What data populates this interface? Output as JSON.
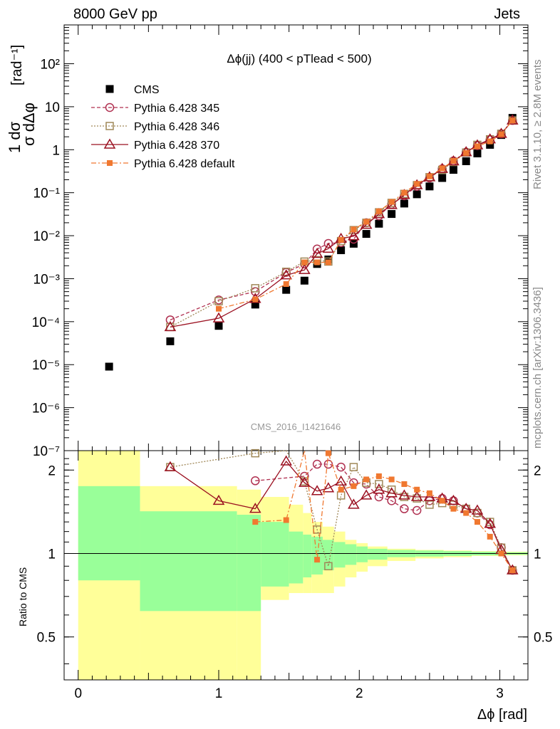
{
  "header": {
    "left": "8000 GeV pp",
    "right": "Jets"
  },
  "side_labels": {
    "top": "Rivet 3.1.10, ≥ 2.8M events",
    "bottom": "mcplots.cern.ch [arXiv:1306.3436]"
  },
  "watermark": "CMS_2016_I1421646",
  "colors": {
    "data": "#000000",
    "p345": "#b03050",
    "p346": "#a08858",
    "p370": "#9b1020",
    "pdef": "#f07830",
    "green_band": "#99ff99",
    "yellow_band": "#ffff99"
  },
  "chart_data": [
    {
      "type": "scatter",
      "title": "Δϕ(jj) (400 < pTlead <  500)",
      "xlabel": "Δϕ [rad]",
      "ylabel": "1 dσ / σ dΔϕ [rad⁻¹]",
      "xlim": [
        -0.1,
        3.2
      ],
      "ylim": [
        1e-07,
        800
      ],
      "log_y": true,
      "legend_position": "top-left",
      "yticks": [
        "10⁻⁷",
        "10⁻⁶",
        "10⁻⁵",
        "10⁻⁴",
        "10⁻³",
        "10⁻²",
        "10⁻¹",
        "1",
        "10",
        "10²"
      ],
      "legend": [
        "CMS",
        "Pythia 6.428 345",
        "Pythia 6.428 346",
        "Pythia 6.428 370",
        "Pythia 6.428 default"
      ],
      "x": [
        0.22,
        0.655,
        1.0,
        1.26,
        1.48,
        1.61,
        1.7,
        1.78,
        1.87,
        1.96,
        2.05,
        2.14,
        2.23,
        2.32,
        2.41,
        2.5,
        2.59,
        2.67,
        2.76,
        2.84,
        2.93,
        3.01,
        3.09
      ],
      "series": [
        {
          "name": "CMS",
          "values": [
            9e-06,
            3.5e-05,
            8e-05,
            0.00025,
            0.00055,
            0.0009,
            0.0022,
            0.0028,
            0.0046,
            0.0065,
            0.011,
            0.019,
            0.032,
            0.056,
            0.092,
            0.14,
            0.22,
            0.34,
            0.54,
            0.82,
            1.3,
            2.2,
            5.5
          ]
        },
        {
          "name": "Pythia 6.428 345",
          "values": [
            null,
            0.00011,
            0.00032,
            0.0005,
            0.0014,
            0.0022,
            0.0049,
            0.0066,
            0.0069,
            0.0083,
            0.02,
            0.029,
            0.054,
            0.085,
            0.14,
            0.22,
            0.36,
            0.55,
            0.88,
            1.25,
            1.7,
            2.35,
            4.8
          ]
        },
        {
          "name": "Pythia 6.428 346",
          "values": [
            null,
            7.5e-05,
            0.0003,
            0.0006,
            0.00145,
            0.0025,
            0.0027,
            0.0025,
            0.0075,
            0.0135,
            0.02,
            0.035,
            0.058,
            0.094,
            0.15,
            0.23,
            0.34,
            0.52,
            0.86,
            1.3,
            1.75,
            2.35,
            4.8
          ]
        },
        {
          "name": "Pythia 6.428 370",
          "values": [
            null,
            7.5e-05,
            0.00012,
            0.00034,
            0.0012,
            0.0016,
            0.0038,
            0.005,
            0.0085,
            0.0098,
            0.018,
            0.032,
            0.052,
            0.089,
            0.15,
            0.23,
            0.36,
            0.54,
            0.88,
            1.27,
            1.75,
            2.35,
            4.8
          ]
        },
        {
          "name": "Pythia 6.428 default",
          "values": [
            null,
            null,
            0.0002,
            0.00033,
            0.00075,
            0.0024,
            0.0024,
            0.0024,
            0.008,
            0.014,
            0.021,
            0.037,
            0.061,
            0.1,
            0.16,
            0.24,
            0.37,
            0.55,
            0.84,
            1.2,
            1.56,
            2.3,
            4.8
          ]
        }
      ]
    },
    {
      "type": "scatter",
      "ylabel": "Ratio to CMS",
      "xlabel": "Δϕ [rad]",
      "xlim": [
        -0.1,
        3.2
      ],
      "ylim": [
        0.35,
        2.35
      ],
      "log_y": true,
      "xticks": [
        "0",
        "1",
        "2",
        "3"
      ],
      "yticks": [
        "0.5",
        "1",
        "2"
      ],
      "x": [
        0.655,
        1.0,
        1.26,
        1.48,
        1.61,
        1.7,
        1.78,
        1.87,
        1.96,
        2.05,
        2.14,
        2.23,
        2.32,
        2.41,
        2.5,
        2.59,
        2.67,
        2.76,
        2.84,
        2.93,
        3.01,
        3.09
      ],
      "series": [
        {
          "name": "Pythia 6.428 345",
          "values": [
            null,
            null,
            1.83,
            null,
            1.9,
            2.1,
            2.1,
            2.05,
            1.8,
            1.78,
            1.6,
            1.55,
            1.45,
            1.43,
            1.55,
            1.58,
            1.55,
            1.45,
            1.4,
            1.27,
            1.05,
            0.87
          ]
        },
        {
          "name": "Pythia 6.428 346",
          "values": [
            2.05,
            null,
            2.3,
            2.42,
            1.82,
            1.22,
            0.9,
            1.62,
            2.05,
            1.8,
            1.78,
            1.7,
            1.6,
            1.58,
            1.5,
            1.52,
            1.5,
            1.45,
            1.4,
            1.3,
            1.05,
            0.87
          ]
        },
        {
          "name": "Pythia 6.428 370",
          "values": [
            2.05,
            1.55,
            1.45,
            2.15,
            1.8,
            1.68,
            1.72,
            1.82,
            1.5,
            1.62,
            1.7,
            1.65,
            1.62,
            1.6,
            1.6,
            1.58,
            1.55,
            1.45,
            1.43,
            1.28,
            1.03,
            0.87
          ]
        },
        {
          "name": "Pythia 6.428 default",
          "values": [
            null,
            null,
            1.3,
            1.32,
            2.5,
            0.95,
            2.3,
            1.7,
            1.75,
            1.85,
            1.9,
            1.85,
            1.78,
            1.7,
            1.65,
            1.55,
            1.45,
            1.4,
            1.3,
            1.15,
            1.0,
            0.87
          ]
        }
      ],
      "bands": {
        "edges": [
          0.0,
          0.44,
          1.13,
          1.3,
          1.5,
          1.6,
          1.66,
          1.74,
          1.82,
          1.9,
          1.98,
          2.06,
          2.2,
          2.4,
          2.6,
          2.8,
          3.0,
          3.2
        ],
        "green": [
          0.8,
          0.62,
          0.62,
          0.76,
          0.78,
          0.82,
          0.84,
          0.87,
          0.89,
          0.91,
          0.93,
          0.95,
          0.97,
          0.975,
          0.98,
          0.985,
          0.99,
          0.99
        ],
        "green_hi": [
          1.75,
          1.42,
          1.38,
          1.3,
          1.2,
          1.17,
          1.15,
          1.12,
          1.1,
          1.08,
          1.06,
          1.04,
          1.03,
          1.025,
          1.02,
          1.015,
          1.01,
          1.01
        ],
        "yellow_lo": [
          0.35,
          0.35,
          0.35,
          0.68,
          0.72,
          0.72,
          0.72,
          0.72,
          0.76,
          0.82,
          0.86,
          0.9,
          0.94,
          0.96,
          0.97,
          0.98,
          0.985,
          0.985
        ],
        "yellow_hi": [
          2.35,
          1.75,
          1.7,
          1.6,
          1.5,
          1.4,
          1.3,
          1.25,
          1.2,
          1.12,
          1.09,
          1.06,
          1.04,
          1.03,
          1.025,
          1.02,
          1.015,
          1.015
        ]
      }
    }
  ]
}
